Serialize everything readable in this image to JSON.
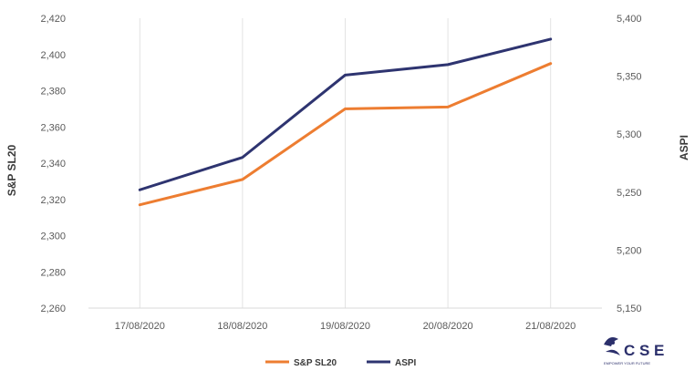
{
  "chart_data": {
    "type": "line",
    "title": "",
    "xlabel": "",
    "categories": [
      "17/08/2020",
      "18/08/2020",
      "19/08/2020",
      "20/08/2020",
      "21/08/2020"
    ],
    "y_left": {
      "label": "S&P SL20",
      "range": [
        2260,
        2420
      ],
      "ticks": [
        "2,260",
        "2,280",
        "2,300",
        "2,320",
        "2,340",
        "2,360",
        "2,380",
        "2,400",
        "2,420"
      ]
    },
    "y_right": {
      "label": "ASPI",
      "range": [
        5150,
        5400
      ],
      "ticks": [
        "5,150",
        "5,200",
        "5,250",
        "5,300",
        "5,350",
        "5,400"
      ]
    },
    "series": [
      {
        "name": "S&P SL20",
        "axis": "left",
        "color": "#ed7d31",
        "values": [
          2317,
          2331,
          2370,
          2371,
          2395
        ]
      },
      {
        "name": "ASPI",
        "axis": "right",
        "color": "#2e3470",
        "values": [
          5252,
          5280,
          5351,
          5360,
          5382
        ]
      }
    ],
    "grid": "vertical",
    "legend_position": "bottom"
  },
  "logo": {
    "text": "C S E",
    "tagline": "EMPOWER YOUR FUTURE",
    "icon": "cse-logo-icon"
  }
}
